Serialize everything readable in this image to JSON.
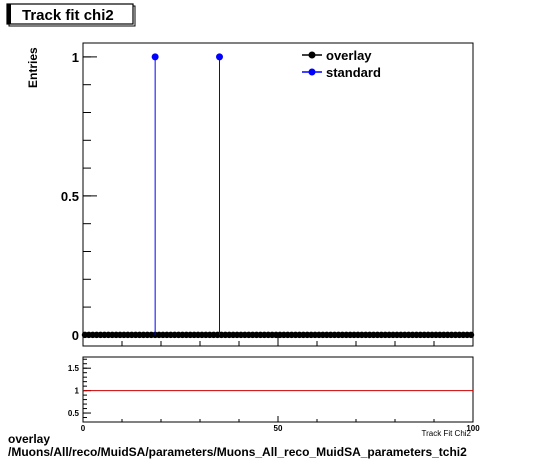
{
  "title": "Track fit chi2",
  "footer": {
    "line1": "overlay",
    "line2": "/Muons/All/reco/MuidSA/parameters/Muons_All_reco_MuidSA_parameters_tchi2"
  },
  "colors": {
    "overlay": "#000000",
    "standard": "#0000ff",
    "ratio_line": "#cc0000"
  },
  "chart_data": [
    {
      "type": "scatter",
      "ylabel": "Entries",
      "xlabel": "Track Fit Chi2",
      "xlim": [
        0,
        100
      ],
      "ylim": [
        -0.04,
        1.05
      ],
      "yticks": [
        0,
        0.5,
        1
      ],
      "ytick_labels": [
        "0",
        "0.5",
        "1"
      ],
      "legend": {
        "placement": "top-right",
        "entries": [
          "overlay",
          "standard"
        ]
      },
      "series": [
        {
          "name": "overlay",
          "bins": 100,
          "x_range": [
            0,
            100
          ],
          "values": [
            0,
            0,
            0,
            0,
            0,
            0,
            0,
            0,
            0,
            0,
            0,
            0,
            0,
            0,
            0,
            0,
            0,
            0,
            0,
            0,
            0,
            0,
            0,
            0,
            0,
            0,
            0,
            0,
            0,
            0,
            0,
            0,
            0,
            0,
            0,
            0,
            0,
            0,
            0,
            0,
            0,
            0,
            0,
            0,
            0,
            0,
            0,
            0,
            0,
            0,
            0,
            0,
            0,
            0,
            0,
            0,
            0,
            0,
            0,
            0,
            0,
            0,
            0,
            0,
            0,
            0,
            0,
            0,
            0,
            0,
            0,
            0,
            0,
            0,
            0,
            0,
            0,
            0,
            0,
            0,
            0,
            0,
            0,
            0,
            0,
            0,
            0,
            0,
            0,
            0,
            0,
            0,
            0,
            0,
            0,
            0,
            0,
            0,
            0,
            0
          ]
        },
        {
          "name": "standard",
          "points": [
            {
              "x": 18.5,
              "y": 1
            },
            {
              "x": 35,
              "y": 1
            }
          ]
        }
      ]
    },
    {
      "type": "line",
      "xlim": [
        0,
        100
      ],
      "ylim": [
        0.3,
        1.75
      ],
      "xticks": [
        0,
        50,
        100
      ],
      "xtick_labels": [
        "0",
        "50",
        "100"
      ],
      "yticks": [
        0.5,
        1,
        1.5
      ],
      "ytick_labels": [
        "0.5",
        "1",
        "1.5"
      ],
      "reference_value": 1
    }
  ]
}
